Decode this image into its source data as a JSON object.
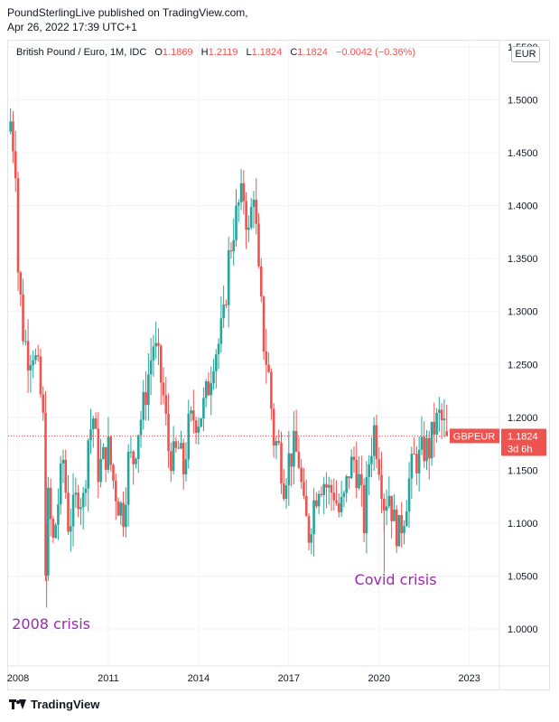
{
  "publisher": {
    "line1": "PoundSterlingLive published on TradingView.com,",
    "line2": "Apr 26, 2022 17:39 UTC+1"
  },
  "header": {
    "symbol": "British Pound / Euro, 1M, IDC",
    "o_label": "O",
    "o_value": "1.1869",
    "h_label": "H",
    "h_value": "1.2119",
    "l_label": "L",
    "l_value": "1.1824",
    "c_label": "C",
    "c_value": "1.1824",
    "change": "−0.0042 (−0.36%)"
  },
  "currency_button": "EUR",
  "last_price": {
    "ticker": "GBPEUR",
    "price": "1.1824",
    "countdown": "3d 6h",
    "color": "#ef5350"
  },
  "footer": {
    "brand": "TradingView"
  },
  "colors": {
    "up": "#26a69a",
    "down": "#ef5350",
    "annotation": "#9c27b0",
    "grid": "#f0f3fa"
  },
  "chart_data": {
    "type": "candlestick",
    "interval": "1M",
    "ylim": [
      0.965,
      1.556
    ],
    "x_range": [
      2007.67,
      2024.0
    ],
    "y_ticks": [
      "1.5500",
      "1.5000",
      "1.4500",
      "1.4000",
      "1.3500",
      "1.3000",
      "1.2500",
      "1.2000",
      "1.1500",
      "1.1000",
      "1.0500",
      "1.0000"
    ],
    "y_tick_values": [
      1.55,
      1.5,
      1.45,
      1.4,
      1.35,
      1.3,
      1.25,
      1.2,
      1.15,
      1.1,
      1.05,
      1.0
    ],
    "x_ticks": [
      "2008",
      "2011",
      "2014",
      "2017",
      "2020",
      "2023"
    ],
    "x_tick_values": [
      2008,
      2011,
      2014,
      2017,
      2020,
      2023
    ],
    "last_value": 1.1824,
    "annotations": [
      {
        "text": "2008 crisis",
        "x": 2009.1,
        "y": 1.0
      },
      {
        "text": "Covid crisis",
        "x": 2020.55,
        "y": 1.042
      }
    ],
    "close_anchors": [
      [
        2007.75,
        1.48
      ],
      [
        2007.92,
        1.44
      ],
      [
        2008.0,
        1.34
      ],
      [
        2008.17,
        1.28
      ],
      [
        2008.33,
        1.26
      ],
      [
        2008.5,
        1.265
      ],
      [
        2008.67,
        1.24
      ],
      [
        2008.83,
        1.2
      ],
      [
        2008.92,
        1.06
      ],
      [
        2009.0,
        1.12
      ],
      [
        2009.17,
        1.08
      ],
      [
        2009.33,
        1.12
      ],
      [
        2009.5,
        1.16
      ],
      [
        2009.67,
        1.1
      ],
      [
        2009.83,
        1.11
      ],
      [
        2010.0,
        1.13
      ],
      [
        2010.17,
        1.12
      ],
      [
        2010.33,
        1.18
      ],
      [
        2010.5,
        1.2
      ],
      [
        2010.67,
        1.15
      ],
      [
        2010.83,
        1.16
      ],
      [
        2011.0,
        1.17
      ],
      [
        2011.17,
        1.14
      ],
      [
        2011.33,
        1.12
      ],
      [
        2011.5,
        1.11
      ],
      [
        2011.67,
        1.16
      ],
      [
        2011.83,
        1.16
      ],
      [
        2012.0,
        1.19
      ],
      [
        2012.17,
        1.21
      ],
      [
        2012.33,
        1.24
      ],
      [
        2012.5,
        1.27
      ],
      [
        2012.67,
        1.25
      ],
      [
        2012.83,
        1.22
      ],
      [
        2013.0,
        1.17
      ],
      [
        2013.17,
        1.16
      ],
      [
        2013.33,
        1.17
      ],
      [
        2013.5,
        1.15
      ],
      [
        2013.67,
        1.19
      ],
      [
        2013.83,
        1.2
      ],
      [
        2014.0,
        1.2
      ],
      [
        2014.17,
        1.21
      ],
      [
        2014.33,
        1.23
      ],
      [
        2014.5,
        1.26
      ],
      [
        2014.67,
        1.27
      ],
      [
        2014.83,
        1.29
      ],
      [
        2015.0,
        1.35
      ],
      [
        2015.17,
        1.38
      ],
      [
        2015.33,
        1.4
      ],
      [
        2015.5,
        1.41
      ],
      [
        2015.67,
        1.37
      ],
      [
        2015.83,
        1.42
      ],
      [
        2016.0,
        1.33
      ],
      [
        2016.17,
        1.27
      ],
      [
        2016.33,
        1.24
      ],
      [
        2016.5,
        1.18
      ],
      [
        2016.67,
        1.17
      ],
      [
        2016.83,
        1.14
      ],
      [
        2017.0,
        1.16
      ],
      [
        2017.17,
        1.17
      ],
      [
        2017.33,
        1.16
      ],
      [
        2017.5,
        1.11
      ],
      [
        2017.67,
        1.09
      ],
      [
        2017.83,
        1.12
      ],
      [
        2018.0,
        1.14
      ],
      [
        2018.17,
        1.14
      ],
      [
        2018.33,
        1.13
      ],
      [
        2018.5,
        1.13
      ],
      [
        2018.67,
        1.11
      ],
      [
        2018.83,
        1.12
      ],
      [
        2019.0,
        1.15
      ],
      [
        2019.17,
        1.16
      ],
      [
        2019.33,
        1.14
      ],
      [
        2019.5,
        1.1
      ],
      [
        2019.67,
        1.16
      ],
      [
        2019.83,
        1.19
      ],
      [
        2020.0,
        1.16
      ],
      [
        2020.17,
        1.12
      ],
      [
        2020.33,
        1.13
      ],
      [
        2020.5,
        1.1
      ],
      [
        2020.67,
        1.09
      ],
      [
        2020.83,
        1.11
      ],
      [
        2021.0,
        1.14
      ],
      [
        2021.17,
        1.16
      ],
      [
        2021.33,
        1.16
      ],
      [
        2021.5,
        1.17
      ],
      [
        2021.67,
        1.17
      ],
      [
        2021.83,
        1.19
      ],
      [
        2022.0,
        1.2
      ],
      [
        2022.17,
        1.19
      ],
      [
        2022.25,
        1.1824
      ]
    ]
  }
}
